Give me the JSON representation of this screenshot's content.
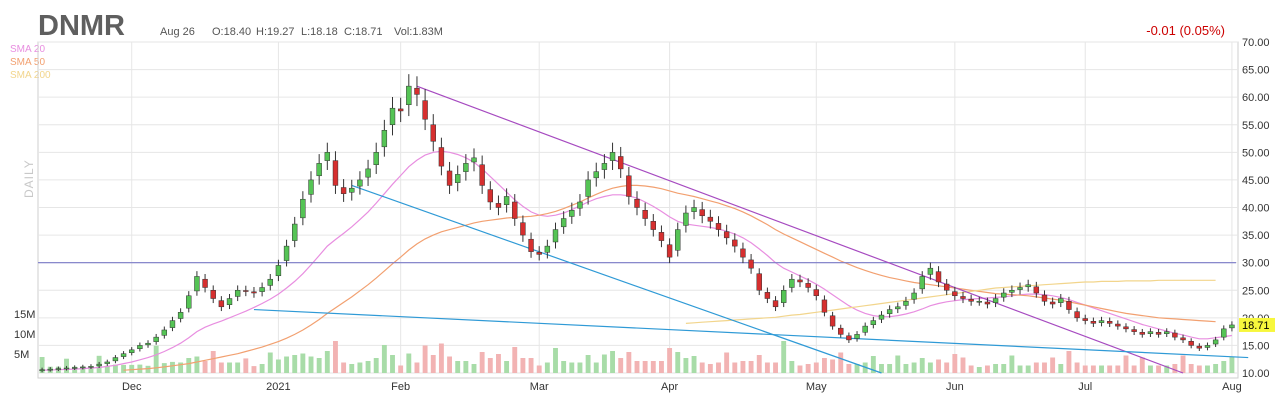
{
  "header": {
    "ticker": "DNMR",
    "date": "Aug 26",
    "open": "O:18.40",
    "high": "H:19.27",
    "low": "L:18.18",
    "close": "C:18.71",
    "volume": "Vol:1.83M",
    "change": "-0.01 (0.05%)"
  },
  "legend": [
    {
      "label": "SMA 20",
      "color": "#e88ee0"
    },
    {
      "label": "SMA 50",
      "color": "#f2a070"
    },
    {
      "label": "SMA 200",
      "color": "#f2d58c"
    }
  ],
  "side_label": "DAILY",
  "colors": {
    "up": "#55c455",
    "down": "#d62f2f",
    "grid": "#e6e6e6",
    "resistance_line": "#a64ac0",
    "support_line": "#2f9ad6",
    "level_line": "#7b7bc8",
    "price_tag_bg": "#f7f73c",
    "volume_up": "#a8dca8",
    "volume_down": "#f2b3b3"
  },
  "chart_data": {
    "type": "candlestick",
    "price_axis": {
      "min": 10,
      "max": 70,
      "ticks": [
        "10.00",
        "15.00",
        "20.00",
        "25.00",
        "30.00",
        "35.00",
        "40.00",
        "45.00",
        "50.00",
        "55.00",
        "60.00",
        "65.00",
        "70.00"
      ]
    },
    "volume_axis": {
      "ticks": [
        "5M",
        "10M",
        "15M"
      ]
    },
    "x_tick_labels": [
      "Dec",
      "2021",
      "Feb",
      "Mar",
      "Apr",
      "May",
      "Jun",
      "Jul",
      "Aug"
    ],
    "last_price": "18.71",
    "horizontal_level": 30,
    "close_series": [
      10.6,
      10.7,
      10.8,
      10.9,
      11.0,
      11.1,
      11.2,
      11.6,
      12.0,
      12.8,
      13.5,
      14.2,
      15.0,
      15.4,
      16.5,
      17.8,
      19.5,
      21.0,
      24.0,
      27.5,
      25.5,
      23.5,
      22.0,
      23.5,
      25.0,
      24.8,
      24.5,
      25.5,
      27.0,
      29.5,
      33.0,
      37.0,
      41.5,
      45.0,
      48.0,
      50.0,
      44.0,
      42.5,
      43.5,
      45.0,
      47.0,
      50.0,
      54.0,
      58.0,
      57.5,
      62.0,
      60.5,
      56.0,
      52.0,
      47.5,
      44.0,
      46.0,
      48.0,
      49.0,
      44.0,
      41.0,
      40.0,
      42.0,
      38.0,
      35.0,
      32.0,
      31.5,
      33.0,
      36.0,
      38.0,
      39.5,
      41.0,
      45.0,
      46.5,
      48.0,
      50.0,
      47.0,
      42.0,
      40.0,
      38.0,
      36.0,
      34.0,
      31.0,
      36.0,
      39.0,
      40.0,
      38.5,
      37.5,
      36.0,
      34.5,
      33.0,
      31.0,
      29.0,
      25.0,
      23.5,
      22.0,
      25.0,
      27.0,
      26.5,
      25.5,
      24.0,
      21.0,
      18.5,
      17.0,
      16.0,
      17.0,
      18.5,
      19.5,
      20.5,
      21.5,
      22.0,
      23.0,
      24.5,
      27.5,
      29.0,
      26.5,
      25.0,
      24.0,
      23.5,
      23.0,
      23.0,
      22.5,
      23.5,
      24.5,
      25.0,
      25.5,
      26.0,
      24.5,
      23.0,
      22.5,
      23.5,
      21.5,
      20.0,
      19.5,
      19.0,
      19.5,
      19.0,
      18.5,
      18.0,
      17.5,
      17.0,
      17.5,
      17.0,
      17.5,
      16.5,
      16.0,
      15.0,
      14.5,
      15.0,
      16.0,
      18.0,
      18.71
    ],
    "sma20_series": [
      10.5,
      10.55,
      10.6,
      10.65,
      10.7,
      10.8,
      10.9,
      11.0,
      11.2,
      11.4,
      11.7,
      12.0,
      12.4,
      12.8,
      13.3,
      13.9,
      14.6,
      15.4,
      16.4,
      17.5,
      18.3,
      18.9,
      19.4,
      20.0,
      20.6,
      21.2,
      21.9,
      22.6,
      23.4,
      24.3,
      25.4,
      26.6,
      28.0,
      29.6,
      31.3,
      33.0,
      34.2,
      35.3,
      36.5,
      37.8,
      39.2,
      40.8,
      42.5,
      44.2,
      45.8,
      47.4,
      48.6,
      49.5,
      50.0,
      50.2,
      50.0,
      49.6,
      49.0,
      48.2,
      47.0,
      45.6,
      44.2,
      42.8,
      41.4,
      40.2,
      39.2,
      38.6,
      38.4,
      38.6,
      39.0,
      39.6,
      40.3,
      41.0,
      41.6,
      42.0,
      42.3,
      42.3,
      42.1,
      41.7,
      41.0,
      40.2,
      39.3,
      38.3,
      37.5,
      37.0,
      36.8,
      36.6,
      36.4,
      36.1,
      35.7,
      35.2,
      34.5,
      33.6,
      32.5,
      31.3,
      30.0,
      29.0,
      28.3,
      27.6,
      26.9,
      26.1,
      25.2,
      24.2,
      23.2,
      22.2,
      21.4,
      20.8,
      20.4,
      20.2,
      20.2,
      20.4,
      20.7,
      21.1,
      21.6,
      22.2,
      22.6,
      22.9,
      23.1,
      23.3,
      23.4,
      23.5,
      23.6,
      23.7,
      23.8,
      24.0,
      24.2,
      24.3,
      24.3,
      24.2,
      24.0,
      23.7,
      23.3,
      22.8,
      22.3,
      21.8,
      21.3,
      20.8,
      20.3,
      19.8,
      19.3,
      18.8,
      18.4,
      18.0,
      17.6,
      17.2,
      16.9,
      16.5,
      16.2,
      16.2,
      16.4,
      16.6,
      16.8
    ],
    "sma50_series": [
      null,
      null,
      null,
      null,
      null,
      null,
      null,
      null,
      null,
      null,
      10.5,
      10.6,
      10.7,
      10.8,
      10.95,
      11.1,
      11.3,
      11.5,
      11.7,
      12.0,
      12.3,
      12.6,
      12.9,
      13.2,
      13.5,
      13.9,
      14.3,
      14.7,
      15.2,
      15.7,
      16.3,
      17.0,
      17.8,
      18.7,
      19.7,
      20.8,
      21.8,
      22.8,
      23.8,
      24.9,
      26.0,
      27.2,
      28.5,
      29.8,
      31.0,
      32.3,
      33.4,
      34.3,
      35.0,
      35.6,
      36.0,
      36.4,
      36.8,
      37.2,
      37.5,
      37.7,
      37.9,
      38.1,
      38.2,
      38.3,
      38.4,
      38.6,
      38.9,
      39.3,
      39.8,
      40.4,
      41.0,
      41.7,
      42.4,
      43.0,
      43.5,
      43.8,
      44.0,
      44.0,
      43.9,
      43.7,
      43.4,
      43.0,
      42.6,
      42.3,
      42.0,
      41.6,
      41.2,
      40.8,
      40.3,
      39.8,
      39.2,
      38.5,
      37.7,
      36.9,
      36.0,
      35.2,
      34.5,
      33.8,
      33.1,
      32.4,
      31.7,
      31.0,
      30.3,
      29.7,
      29.1,
      28.6,
      28.1,
      27.7,
      27.3,
      27.0,
      26.7,
      26.4,
      26.2,
      26.0,
      25.8,
      25.6,
      25.4,
      25.2,
      25.0,
      24.8,
      24.6,
      24.4,
      24.3,
      24.2,
      24.1,
      24.0,
      23.8,
      23.6,
      23.4,
      23.2,
      22.9,
      22.6,
      22.3,
      22.0,
      21.7,
      21.4,
      21.1,
      20.8,
      20.6,
      20.4,
      20.2,
      20.0,
      19.9,
      19.8,
      19.7,
      19.6,
      19.5,
      19.4,
      19.3
    ],
    "sma200_series": [
      null,
      null,
      null,
      null,
      null,
      null,
      null,
      null,
      null,
      null,
      null,
      null,
      null,
      null,
      null,
      null,
      null,
      null,
      null,
      null,
      null,
      null,
      null,
      null,
      null,
      null,
      null,
      null,
      null,
      null,
      null,
      null,
      null,
      null,
      null,
      null,
      null,
      null,
      null,
      null,
      null,
      null,
      null,
      null,
      null,
      null,
      null,
      null,
      null,
      null,
      null,
      null,
      null,
      null,
      null,
      null,
      null,
      null,
      null,
      null,
      null,
      null,
      null,
      null,
      null,
      null,
      null,
      null,
      null,
      null,
      null,
      null,
      null,
      null,
      null,
      null,
      null,
      null,
      null,
      19.0,
      19.1,
      19.2,
      19.3,
      19.4,
      19.5,
      19.6,
      19.7,
      19.8,
      19.9,
      20.0,
      20.1,
      20.3,
      20.5,
      20.6,
      20.8,
      21.0,
      21.2,
      21.4,
      21.6,
      21.8,
      22.0,
      22.2,
      22.4,
      22.6,
      22.8,
      23.0,
      23.2,
      23.4,
      23.6,
      23.8,
      24.0,
      24.2,
      24.4,
      24.6,
      24.8,
      25.0,
      25.2,
      25.4,
      25.5,
      25.6,
      25.7,
      25.8,
      25.9,
      26.0,
      26.1,
      26.2,
      26.3,
      26.4,
      26.5,
      26.5,
      26.6,
      26.6,
      26.6,
      26.7,
      26.7,
      26.7,
      26.7,
      26.8,
      26.8,
      26.8,
      26.8,
      26.8,
      26.8,
      26.8,
      26.8
    ],
    "trendlines": [
      {
        "name": "resistance",
        "from": {
          "bar": 46,
          "price": 62.0
        },
        "to": {
          "bar": 140,
          "price": 10.0
        }
      },
      {
        "name": "support-steep",
        "from": {
          "bar": 38,
          "price": 44.0
        },
        "to": {
          "bar": 103,
          "price": 10.0
        }
      },
      {
        "name": "support-shallow",
        "from": {
          "bar": 26,
          "price": 21.5
        },
        "to": {
          "bar": 148,
          "price": 12.8
        }
      }
    ]
  }
}
